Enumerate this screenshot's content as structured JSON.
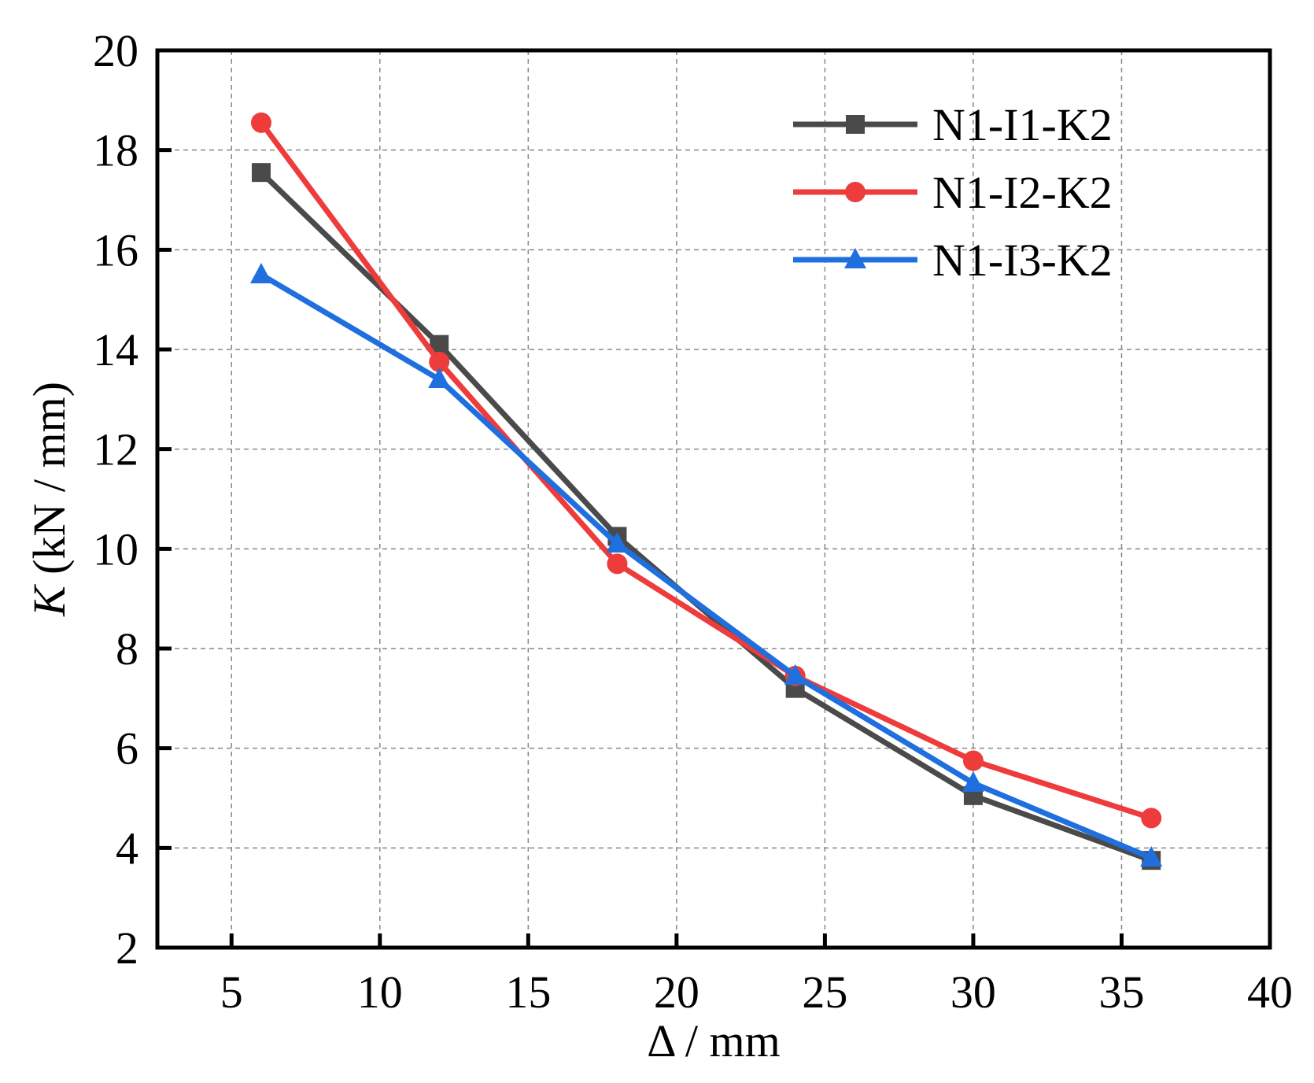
{
  "chart_data": {
    "type": "line",
    "title": "",
    "xlabel": "Δ / mm",
    "ylabel_italic": "K",
    "ylabel_rest": " (kN / mm)",
    "xlim": [
      2.5,
      40
    ],
    "ylim": [
      2,
      20
    ],
    "xticks": [
      5,
      10,
      15,
      20,
      25,
      30,
      35,
      40
    ],
    "yticks": [
      2,
      4,
      6,
      8,
      10,
      12,
      14,
      16,
      18,
      20
    ],
    "grid": true,
    "legend_position": "top-right",
    "x": [
      6,
      12,
      18,
      24,
      30,
      36
    ],
    "series": [
      {
        "name": "N1-I1-K2",
        "color": "#4a4a4a",
        "marker": "square",
        "values": [
          17.55,
          14.1,
          10.25,
          7.2,
          5.05,
          3.75
        ]
      },
      {
        "name": "N1-I2-K2",
        "color": "#ee3b3b",
        "marker": "circle",
        "values": [
          18.55,
          13.75,
          9.7,
          7.45,
          5.75,
          4.6
        ]
      },
      {
        "name": "N1-I3-K2",
        "color": "#1f6fdf",
        "marker": "triangle",
        "values": [
          15.5,
          13.4,
          10.1,
          7.45,
          5.3,
          3.8
        ]
      }
    ]
  }
}
